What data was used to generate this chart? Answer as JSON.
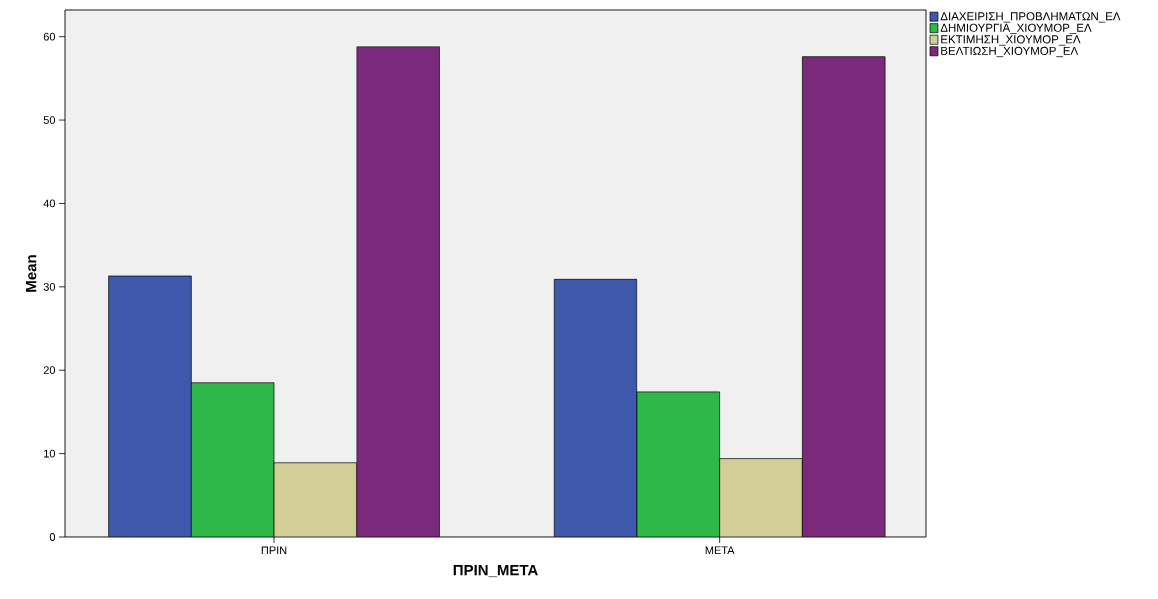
{
  "chart_data": {
    "type": "bar",
    "xlabel": "ΠΡΙΝ_ΜΕΤΑ",
    "ylabel": "Mean",
    "categories": [
      "ΠΡΙΝ",
      "ΜΕΤΑ"
    ],
    "series": [
      {
        "name": "ΔΙΑΧΕΙΡΙΣΗ_ΠΡΟΒΛΗΜΑΤΩΝ_ΕΛ",
        "color": "#3e58ac",
        "values": [
          31.3,
          30.9
        ]
      },
      {
        "name": "ΔΗΜΙΟΥΡΓΙΑ_ΧΙΟΥΜΟΡ_ΕΛ",
        "color": "#2eb848",
        "values": [
          18.5,
          17.4
        ]
      },
      {
        "name": "ΕΚΤΙΜΗΣΗ_ΧΙΟΥΜΟΡ_ΕΛ",
        "color": "#d3ce97",
        "values": [
          8.9,
          9.4
        ]
      },
      {
        "name": "ΒΕΛΤΙΩΣΗ_ΧΙΟΥΜΟΡ_ΕΛ",
        "color": "#7b2a7b",
        "values": [
          58.8,
          57.6
        ]
      }
    ],
    "ylim": [
      0,
      63.2
    ],
    "yticks": [
      0,
      10,
      20,
      30,
      40,
      50,
      60
    ],
    "grid": false,
    "legend": "top right"
  }
}
